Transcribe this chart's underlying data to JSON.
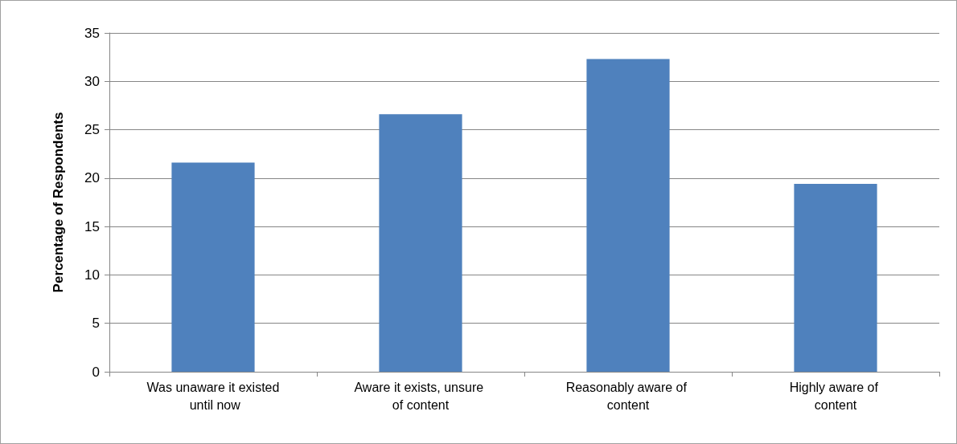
{
  "chart_data": {
    "type": "bar",
    "ylabel": "Percentage of Respondents",
    "categories": [
      "Was unaware it existed until now",
      "Aware it exists, unsure of content",
      "Reasonably aware of content",
      "Highly aware of content"
    ],
    "values": [
      21.6,
      26.6,
      32.3,
      19.4
    ],
    "color": "#4f81bd",
    "ylim": [
      0,
      35
    ],
    "yticks": [
      0,
      5,
      10,
      15,
      20,
      25,
      30,
      35
    ],
    "grid": "y"
  }
}
